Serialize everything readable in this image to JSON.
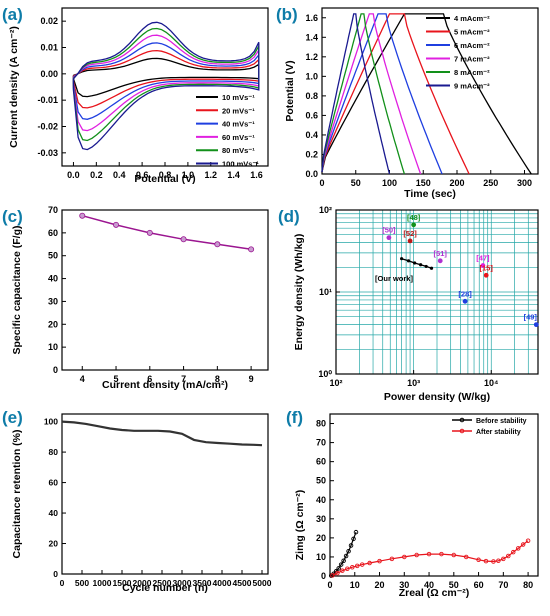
{
  "panels": [
    {
      "id": "a",
      "tag": "(a)"
    },
    {
      "id": "b",
      "tag": "(b)"
    },
    {
      "id": "c",
      "tag": "(c)"
    },
    {
      "id": "d",
      "tag": "(d)"
    },
    {
      "id": "e",
      "tag": "(e)"
    },
    {
      "id": "f",
      "tag": "(f)"
    }
  ],
  "chart_data": [
    {
      "id": "a",
      "type": "line",
      "xlabel": "Potential (V)",
      "ylabel": "Current density (A cm⁻²)",
      "xlim": [
        -0.1,
        1.7
      ],
      "ylim": [
        -0.035,
        0.025
      ],
      "xticks": [
        0.0,
        0.2,
        0.4,
        0.6,
        0.8,
        1.0,
        1.2,
        1.4,
        1.6
      ],
      "yticks": [
        -0.03,
        -0.02,
        -0.01,
        0.0,
        0.01,
        0.02
      ],
      "xticklabels": [
        "0.0",
        "0.2",
        "0.4",
        "0.6",
        "0.8",
        "1.0",
        "1.2",
        "1.4",
        "1.6"
      ],
      "yticklabels": [
        "-0.03",
        "-0.02",
        "-0.01",
        "0.00",
        "0.01",
        "0.02"
      ],
      "legend_position": "bottom-right",
      "series": [
        {
          "name": "10 mVs⁻¹",
          "color": "#000000",
          "scale": 0.3
        },
        {
          "name": "20 mVs⁻¹",
          "color": "#e8141c",
          "scale": 0.45
        },
        {
          "name": "40 mVs⁻¹",
          "color": "#1f3fe0",
          "scale": 0.6
        },
        {
          "name": "60 mVs⁻¹",
          "color": "#e020e0",
          "scale": 0.75
        },
        {
          "name": "80 mVs⁻¹",
          "color": "#12901a",
          "scale": 0.88
        },
        {
          "name": "100 mVs⁻¹",
          "color": "#1a1a90",
          "scale": 1.0
        }
      ]
    },
    {
      "id": "b",
      "type": "line",
      "xlabel": "Time (sec)",
      "ylabel": "Potential (V)",
      "xlim": [
        0,
        320
      ],
      "ylim": [
        0,
        1.7
      ],
      "xticks": [
        0,
        50,
        100,
        150,
        200,
        250,
        300
      ],
      "yticks": [
        0.0,
        0.2,
        0.4,
        0.6,
        0.8,
        1.0,
        1.2,
        1.4,
        1.6
      ],
      "xticklabels": [
        "0",
        "50",
        "100",
        "150",
        "200",
        "250",
        "300"
      ],
      "yticklabels": [
        "0.0",
        "0.2",
        "0.4",
        "0.6",
        "0.8",
        "1.0",
        "1.2",
        "1.4",
        "1.6"
      ],
      "legend_position": "top-right",
      "series": [
        {
          "name": "4 mAcm⁻²",
          "color": "#000000",
          "charge_end": 122,
          "plateau_end": 180,
          "discharge_end": 310
        },
        {
          "name": "5 mAcm⁻²",
          "color": "#e8141c",
          "charge_end": 100,
          "plateau_end": 122,
          "discharge_end": 218
        },
        {
          "name": "6 mAcm⁻²",
          "color": "#1f3fe0",
          "charge_end": 83,
          "plateau_end": 95,
          "discharge_end": 178
        },
        {
          "name": "7 mAcm⁻²",
          "color": "#e020e0",
          "charge_end": 70,
          "plateau_end": 76,
          "discharge_end": 146
        },
        {
          "name": "8 mAcm⁻²",
          "color": "#12901a",
          "charge_end": 58,
          "plateau_end": 62,
          "discharge_end": 122
        },
        {
          "name": "9 mAcm⁻²",
          "color": "#1a1a90",
          "charge_end": 47,
          "plateau_end": 50,
          "discharge_end": 100
        }
      ]
    },
    {
      "id": "c",
      "type": "line",
      "xlabel": "Current density (mA/cm²)",
      "ylabel": "Specific capacitance (F/g)",
      "xlim": [
        3.4,
        9.5
      ],
      "ylim": [
        0,
        70
      ],
      "xticks": [
        4,
        5,
        6,
        7,
        8,
        9
      ],
      "yticks": [
        0,
        10,
        20,
        30,
        40,
        50,
        60,
        70
      ],
      "xticklabels": [
        "4",
        "5",
        "6",
        "7",
        "8",
        "9"
      ],
      "yticklabels": [
        "0",
        "10",
        "20",
        "30",
        "40",
        "50",
        "60",
        "70"
      ],
      "x": [
        4,
        5,
        6,
        7,
        8,
        9
      ],
      "y": [
        67.5,
        63.5,
        60,
        57.2,
        55,
        52.8
      ],
      "color": "#9b1590"
    },
    {
      "id": "d",
      "type": "scatter",
      "xlabel": "Power density (W/kg)",
      "ylabel": "Energy density (Wh/kg)",
      "xscale": "log",
      "yscale": "log",
      "xlim": [
        100,
        40000
      ],
      "ylim": [
        1,
        100
      ],
      "xticks": [
        100,
        1000,
        10000
      ],
      "yticks": [
        1,
        10,
        100
      ],
      "xticklabels": [
        "10²",
        "10³",
        "10⁴"
      ],
      "yticklabels": [
        "10⁰",
        "10¹",
        "10²"
      ],
      "grid": true,
      "points": [
        {
          "label": "[50]",
          "x": 480,
          "y": 46,
          "color": "#b030d0"
        },
        {
          "label": "[48]",
          "x": 1000,
          "y": 66,
          "color": "#12901a"
        },
        {
          "label": "[52]",
          "x": 900,
          "y": 42,
          "color": "#c01818"
        },
        {
          "label": "[51]",
          "x": 2200,
          "y": 24,
          "color": "#b030d0"
        },
        {
          "label": "[47]",
          "x": 7800,
          "y": 21,
          "color": "#e020e0"
        },
        {
          "label": "[15]",
          "x": 8600,
          "y": 16,
          "color": "#e8141c"
        },
        {
          "label": "[28]",
          "x": 4600,
          "y": 7.7,
          "color": "#1f3fe0"
        },
        {
          "label": "[49]",
          "x": 38000,
          "y": 4,
          "color": "#1f3fe0"
        }
      ],
      "our_work": {
        "label": "[Our work]",
        "x": [
          700,
          860,
          1030,
          1230,
          1450,
          1700
        ],
        "y": [
          25.5,
          24,
          22.6,
          21.5,
          20.5,
          19.5
        ],
        "color": "#000000"
      }
    },
    {
      "id": "e",
      "type": "line",
      "xlabel": "Cycle number (n)",
      "ylabel": "Capacitance retention (%)",
      "xlim": [
        0,
        5150
      ],
      "ylim": [
        0,
        105
      ],
      "xticks": [
        0,
        500,
        1000,
        1500,
        2000,
        2500,
        3000,
        3500,
        4000,
        4500,
        5000
      ],
      "yticks": [
        0,
        20,
        40,
        60,
        80,
        100
      ],
      "xticklabels": [
        "0",
        "500",
        "1000",
        "1500",
        "2000",
        "2500",
        "3000",
        "3500",
        "4000",
        "4500",
        "5000"
      ],
      "yticklabels": [
        "0",
        "20",
        "40",
        "60",
        "80",
        "100"
      ],
      "x": [
        0,
        300,
        600,
        900,
        1200,
        1500,
        1800,
        2100,
        2400,
        2700,
        3000,
        3300,
        3600,
        3900,
        4200,
        4500,
        4800,
        5000
      ],
      "y": [
        100,
        99.5,
        98.5,
        97,
        95.5,
        94.5,
        94,
        94,
        94,
        93.5,
        92,
        88,
        86.5,
        86,
        85.5,
        85,
        84.8,
        84.5
      ],
      "color": "#333333"
    },
    {
      "id": "f",
      "type": "line",
      "xlabel": "Zreal (Ω cm⁻²)",
      "ylabel": "Zimg (Ω cm⁻²)",
      "xlim": [
        0,
        84
      ],
      "ylim": [
        0,
        85
      ],
      "xticks": [
        0,
        10,
        20,
        30,
        40,
        50,
        60,
        70,
        80
      ],
      "yticks": [
        0,
        10,
        20,
        30,
        40,
        50,
        60,
        70,
        80
      ],
      "xticklabels": [
        "0",
        "10",
        "20",
        "30",
        "40",
        "50",
        "60",
        "70",
        "80"
      ],
      "yticklabels": [
        "0",
        "10",
        "20",
        "30",
        "40",
        "50",
        "60",
        "70",
        "80"
      ],
      "legend_position": "top-right",
      "series": [
        {
          "name": "Before stability",
          "color": "#000000",
          "x": [
            0.5,
            1.5,
            2.5,
            3.5,
            4.5,
            5.5,
            6.5,
            7.5,
            8.5,
            9.5,
            10.5
          ],
          "y": [
            0.2,
            1.2,
            2.5,
            4,
            6,
            8,
            10.5,
            13,
            16,
            19.5,
            23
          ]
        },
        {
          "name": "After stability",
          "color": "#e8141c",
          "x": [
            1,
            3,
            5,
            7,
            9,
            11,
            13,
            16,
            20,
            25,
            30,
            35,
            40,
            45,
            50,
            55,
            60,
            63,
            66,
            68,
            70,
            72,
            74,
            76,
            78,
            80
          ],
          "y": [
            0.3,
            1.5,
            2.8,
            3.8,
            4.6,
            5.3,
            6,
            6.8,
            7.8,
            9,
            10,
            11,
            11.5,
            11.5,
            11,
            10,
            8.5,
            7.8,
            7.6,
            8,
            9,
            10.5,
            12.5,
            14.5,
            16.5,
            18.5
          ]
        }
      ]
    }
  ],
  "labels": {
    "a": {
      "ylabel_html": "Current density (A cm",
      "ylabel_sup": "-2",
      "ylabel_end": ")"
    },
    "c": {
      "xlabel_main": "Current density (mA/cm",
      "xlabel_sup": "2",
      "xlabel_end": ")"
    },
    "d": {
      "our_work": "[Our work]"
    },
    "f": {
      "xlabel_main": "Z",
      "xlabel_sub": "real",
      "xlabel_rest": " (Ω cm",
      "xlabel_sup": "-2",
      "xlabel_end": ")",
      "ylabel_main": "Z",
      "ylabel_sub": "img",
      "ylabel_rest": " (Ω cm",
      "ylabel_sup": "-2",
      "ylabel_end": ")"
    }
  }
}
